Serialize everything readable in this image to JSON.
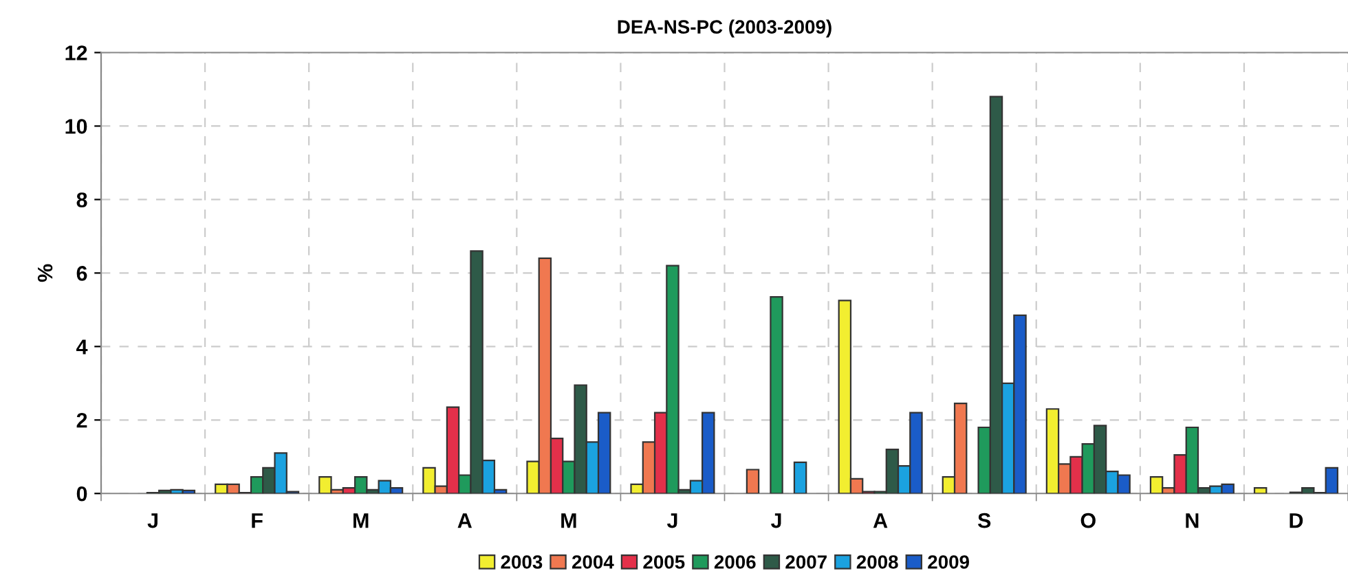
{
  "chart_data": {
    "type": "bar",
    "title": "DEA-NS-PC (2003-2009)",
    "ylabel": "%",
    "categories": [
      "J",
      "F",
      "M",
      "A",
      "M",
      "J",
      "J",
      "A",
      "S",
      "O",
      "N",
      "D"
    ],
    "series": [
      {
        "name": "2003",
        "color": "#f2ee30",
        "values": [
          null,
          0.25,
          0.45,
          0.7,
          0.87,
          0.25,
          null,
          5.25,
          0.45,
          2.3,
          0.45,
          0.15
        ]
      },
      {
        "name": "2004",
        "color": "#f07850",
        "values": [
          null,
          0.25,
          0.1,
          0.2,
          6.4,
          1.4,
          0.65,
          0.4,
          2.45,
          0.8,
          0.15,
          null
        ]
      },
      {
        "name": "2005",
        "color": "#e3304a",
        "values": [
          null,
          0.02,
          0.15,
          2.35,
          1.5,
          2.2,
          null,
          0.05,
          null,
          1.0,
          1.05,
          null
        ]
      },
      {
        "name": "2006",
        "color": "#1f9a5c",
        "values": [
          0.02,
          0.45,
          0.45,
          0.5,
          0.87,
          6.2,
          5.35,
          0.05,
          1.8,
          1.35,
          1.8,
          0.03
        ]
      },
      {
        "name": "2007",
        "color": "#2e5a48",
        "values": [
          0.08,
          0.7,
          0.1,
          6.6,
          2.95,
          0.1,
          null,
          1.2,
          10.8,
          1.85,
          0.15,
          0.15
        ]
      },
      {
        "name": "2008",
        "color": "#1ba2e0",
        "values": [
          0.1,
          1.1,
          0.35,
          0.9,
          1.4,
          0.35,
          0.85,
          0.75,
          3.0,
          0.6,
          0.2,
          0.02
        ]
      },
      {
        "name": "2009",
        "color": "#1a5cc8",
        "values": [
          0.08,
          0.05,
          0.15,
          0.1,
          2.2,
          2.2,
          null,
          2.2,
          4.85,
          0.5,
          0.25,
          0.7
        ]
      }
    ],
    "ylim": [
      0,
      12
    ],
    "yticks": [
      0,
      2,
      4,
      6,
      8,
      10,
      12
    ],
    "grid": true,
    "legend": "bottom"
  }
}
